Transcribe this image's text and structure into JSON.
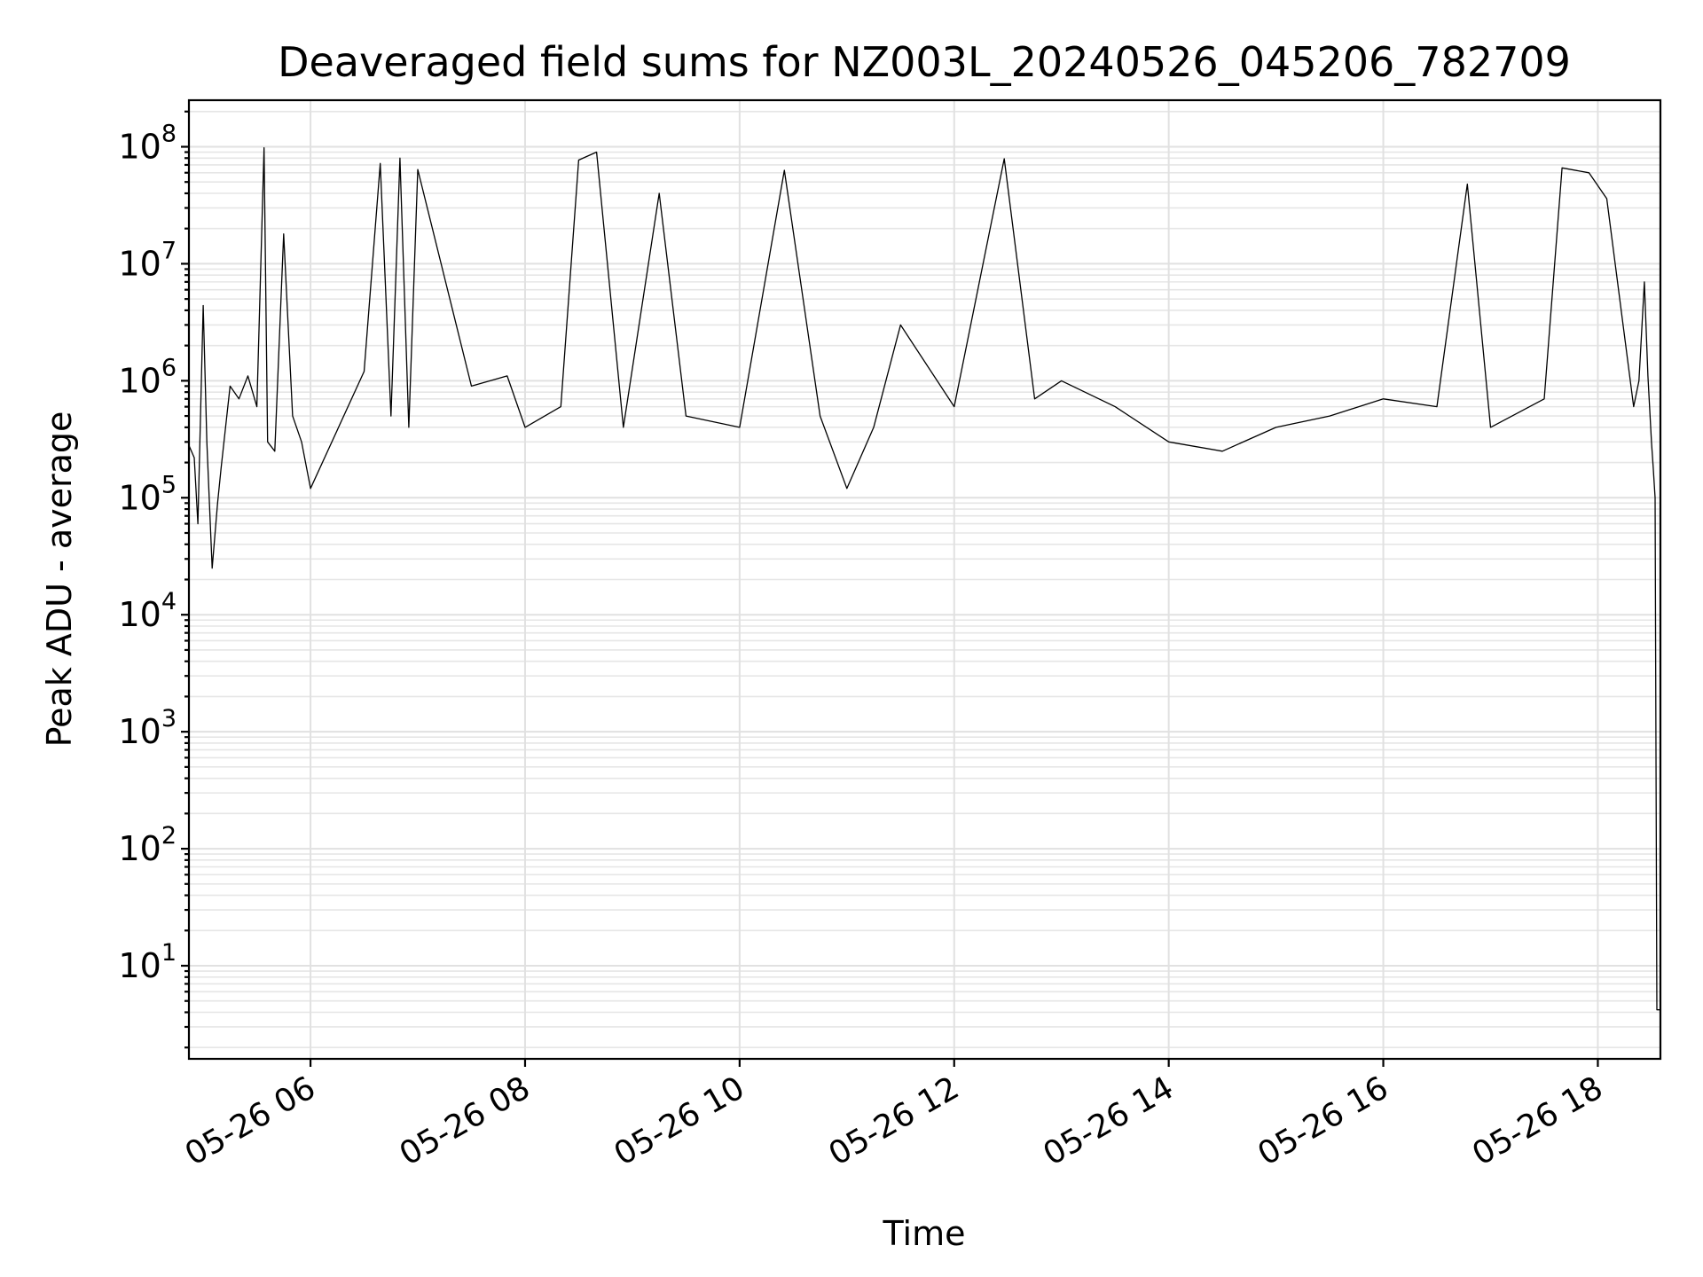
{
  "chart_data": {
    "type": "line",
    "title": "Deaveraged field sums for NZ003L_20240526_045206_782709",
    "xlabel": "Time",
    "ylabel": "Peak ADU - average",
    "yscale": "log",
    "ylim": [
      1.6,
      250000000
    ],
    "xlim": [
      "2024-05-26 04:52",
      "2024-05-26 18:35"
    ],
    "grid": true,
    "x_ticks": [
      "05-26 06",
      "05-26 08",
      "05-26 10",
      "05-26 12",
      "05-26 14",
      "05-26 16",
      "05-26 18"
    ],
    "y_ticks": [
      {
        "base": "10",
        "exp": "1"
      },
      {
        "base": "10",
        "exp": "2"
      },
      {
        "base": "10",
        "exp": "3"
      },
      {
        "base": "10",
        "exp": "4"
      },
      {
        "base": "10",
        "exp": "5"
      },
      {
        "base": "10",
        "exp": "6"
      },
      {
        "base": "10",
        "exp": "7"
      },
      {
        "base": "10",
        "exp": "8"
      }
    ],
    "series": [
      {
        "color": "#000000",
        "x": [
          "2024-05-26 04:52",
          "2024-05-26 04:55",
          "2024-05-26 04:57",
          "2024-05-26 05:00",
          "2024-05-26 05:02",
          "2024-05-26 05:05",
          "2024-05-26 05:08",
          "2024-05-26 05:10",
          "2024-05-26 05:15",
          "2024-05-26 05:20",
          "2024-05-26 05:25",
          "2024-05-26 05:30",
          "2024-05-26 05:34",
          "2024-05-26 05:36",
          "2024-05-26 05:40",
          "2024-05-26 05:45",
          "2024-05-26 05:50",
          "2024-05-26 05:55",
          "2024-05-26 06:00",
          "2024-05-26 06:30",
          "2024-05-26 06:39",
          "2024-05-26 06:45",
          "2024-05-26 06:50",
          "2024-05-26 06:55",
          "2024-05-26 07:00",
          "2024-05-26 07:30",
          "2024-05-26 07:50",
          "2024-05-26 08:00",
          "2024-05-26 08:20",
          "2024-05-26 08:30",
          "2024-05-26 08:40",
          "2024-05-26 08:55",
          "2024-05-26 09:15",
          "2024-05-26 09:30",
          "2024-05-26 10:00",
          "2024-05-26 10:25",
          "2024-05-26 10:45",
          "2024-05-26 11:00",
          "2024-05-26 11:15",
          "2024-05-26 11:30",
          "2024-05-26 12:00",
          "2024-05-26 12:28",
          "2024-05-26 12:45",
          "2024-05-26 13:00",
          "2024-05-26 13:30",
          "2024-05-26 14:00",
          "2024-05-26 14:30",
          "2024-05-26 15:00",
          "2024-05-26 15:30",
          "2024-05-26 16:00",
          "2024-05-26 16:30",
          "2024-05-26 16:47",
          "2024-05-26 17:00",
          "2024-05-26 17:30",
          "2024-05-26 17:40",
          "2024-05-26 17:55",
          "2024-05-26 18:05",
          "2024-05-26 18:20",
          "2024-05-26 18:23",
          "2024-05-26 18:26",
          "2024-05-26 18:28",
          "2024-05-26 18:30",
          "2024-05-26 18:31",
          "2024-05-26 18:32",
          "2024-05-26 18:33",
          "2024-05-26 18:35"
        ],
        "y": [
          280000,
          220000,
          60000,
          4400000,
          300000,
          25000,
          90000,
          180000,
          900000,
          700000,
          1100000,
          600000,
          98000000,
          300000,
          250000,
          18000000,
          500000,
          300000,
          120000,
          1200000,
          72000000,
          500000,
          80000000,
          400000,
          64000000,
          900000,
          1100000,
          400000,
          600000,
          77000000,
          90000000,
          400000,
          40000000,
          500000,
          400000,
          63000000,
          500000,
          120000,
          400000,
          3000000,
          600000,
          79000000,
          700000,
          1000000,
          600000,
          300000,
          250000,
          400000,
          500000,
          700000,
          600000,
          48000000,
          400000,
          700000,
          66000000,
          60000000,
          36000000,
          600000,
          1000000,
          7000000,
          1100000,
          300000,
          180000,
          100000,
          4.2,
          4.2
        ]
      }
    ]
  }
}
